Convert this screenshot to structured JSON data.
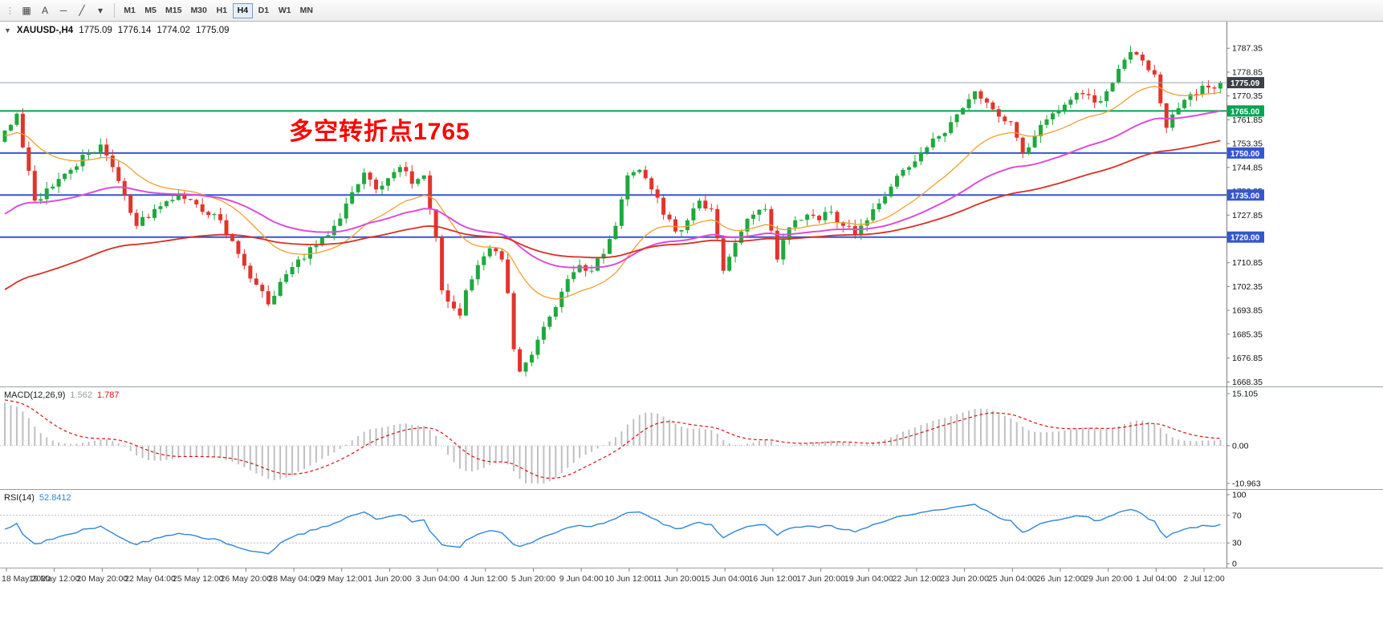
{
  "toolbar": {
    "tools": [
      {
        "name": "chart-type-icon",
        "glyph": "▦"
      },
      {
        "name": "text-tool-icon",
        "glyph": "A"
      },
      {
        "name": "hline-tool-icon",
        "glyph": "─"
      },
      {
        "name": "trendline-tool-icon",
        "glyph": "╱"
      },
      {
        "name": "tools-dropdown-icon",
        "glyph": "▾"
      }
    ],
    "timeframes": [
      {
        "label": "M1",
        "active": false
      },
      {
        "label": "M5",
        "active": false
      },
      {
        "label": "M15",
        "active": false
      },
      {
        "label": "M30",
        "active": false
      },
      {
        "label": "H1",
        "active": false
      },
      {
        "label": "H4",
        "active": true
      },
      {
        "label": "D1",
        "active": false
      },
      {
        "label": "W1",
        "active": false
      },
      {
        "label": "MN",
        "active": false
      }
    ]
  },
  "chart": {
    "symbol_line": {
      "collapse_glyph": "▼",
      "title": "XAUUSD-,H4",
      "o": "1775.09",
      "h": "1776.14",
      "l": "1774.02",
      "c": "1775.09"
    },
    "annotation": {
      "text": "多空转折点1765",
      "color": "#ff0000"
    }
  },
  "chart_data": {
    "type": "candlestick",
    "symbol": "XAUUSD-",
    "timeframe": "H4",
    "ohlc_current": {
      "open": 1775.09,
      "high": 1776.14,
      "low": 1774.02,
      "close": 1775.09
    },
    "bars": 204,
    "noise_amp": 1.6,
    "wick_amp": 2.4,
    "candle_colors": {
      "up": "#1fa83d",
      "down": "#e2342c"
    },
    "price_path_anchors": [
      [
        0,
        1758
      ],
      [
        2,
        1764
      ],
      [
        3,
        1752
      ],
      [
        5,
        1733
      ],
      [
        8,
        1738
      ],
      [
        11,
        1744
      ],
      [
        14,
        1750
      ],
      [
        16,
        1753
      ],
      [
        19,
        1740
      ],
      [
        22,
        1724
      ],
      [
        26,
        1731
      ],
      [
        29,
        1735
      ],
      [
        33,
        1729
      ],
      [
        36,
        1726
      ],
      [
        39,
        1714
      ],
      [
        42,
        1703
      ],
      [
        44,
        1696
      ],
      [
        46,
        1704
      ],
      [
        49,
        1712
      ],
      [
        52,
        1717
      ],
      [
        55,
        1724
      ],
      [
        58,
        1736
      ],
      [
        60,
        1743
      ],
      [
        62,
        1737
      ],
      [
        64,
        1741
      ],
      [
        66,
        1745
      ],
      [
        68,
        1739
      ],
      [
        70,
        1742
      ],
      [
        72,
        1720
      ],
      [
        73,
        1701
      ],
      [
        74,
        1697
      ],
      [
        76,
        1692
      ],
      [
        77,
        1701
      ],
      [
        79,
        1710
      ],
      [
        81,
        1716
      ],
      [
        83,
        1712
      ],
      [
        84,
        1700
      ],
      [
        85,
        1680
      ],
      [
        86,
        1672
      ],
      [
        88,
        1678
      ],
      [
        90,
        1688
      ],
      [
        92,
        1695
      ],
      [
        94,
        1705
      ],
      [
        96,
        1710
      ],
      [
        98,
        1708
      ],
      [
        100,
        1714
      ],
      [
        102,
        1724
      ],
      [
        104,
        1742
      ],
      [
        106,
        1744
      ],
      [
        108,
        1737
      ],
      [
        110,
        1728
      ],
      [
        112,
        1722
      ],
      [
        114,
        1726
      ],
      [
        116,
        1733
      ],
      [
        118,
        1730
      ],
      [
        120,
        1708
      ],
      [
        121,
        1713
      ],
      [
        123,
        1722
      ],
      [
        125,
        1728
      ],
      [
        127,
        1730
      ],
      [
        129,
        1712
      ],
      [
        130,
        1719
      ],
      [
        132,
        1726
      ],
      [
        134,
        1728
      ],
      [
        136,
        1726
      ],
      [
        138,
        1729
      ],
      [
        140,
        1724
      ],
      [
        142,
        1721
      ],
      [
        144,
        1726
      ],
      [
        146,
        1732
      ],
      [
        148,
        1738
      ],
      [
        150,
        1744
      ],
      [
        152,
        1747
      ],
      [
        154,
        1752
      ],
      [
        156,
        1756
      ],
      [
        158,
        1761
      ],
      [
        160,
        1766
      ],
      [
        162,
        1772
      ],
      [
        164,
        1768
      ],
      [
        166,
        1763
      ],
      [
        168,
        1761
      ],
      [
        170,
        1750
      ],
      [
        172,
        1756
      ],
      [
        174,
        1762
      ],
      [
        176,
        1765
      ],
      [
        178,
        1769
      ],
      [
        180,
        1771
      ],
      [
        182,
        1768
      ],
      [
        184,
        1772
      ],
      [
        186,
        1780
      ],
      [
        188,
        1786
      ],
      [
        190,
        1783
      ],
      [
        192,
        1778
      ],
      [
        194,
        1759
      ],
      [
        196,
        1766
      ],
      [
        198,
        1771
      ],
      [
        200,
        1774
      ],
      [
        202,
        1773
      ],
      [
        203,
        1775.09
      ]
    ],
    "moving_averages": [
      {
        "name": "ma-fast-orange",
        "period": 20,
        "seed": 1756,
        "color": "#f0a030",
        "width": 1.3
      },
      {
        "name": "ma-mid-magenta",
        "period": 48,
        "seed": 1727,
        "color": "#d94fd9",
        "width": 2
      },
      {
        "name": "ma-slow-red",
        "period": 90,
        "seed": 1700,
        "color": "#d93025",
        "width": 1.8
      }
    ],
    "hlines": [
      {
        "price": 1765.0,
        "label": "1765.00",
        "color": "#00a550",
        "width": 2
      },
      {
        "price": 1750.0,
        "label": "1750.00",
        "color": "#3456d1",
        "width": 2
      },
      {
        "price": 1735.0,
        "label": "1735.00",
        "color": "#3456d1",
        "width": 2
      },
      {
        "price": 1720.0,
        "label": "1720.00",
        "color": "#3456d1",
        "width": 2
      }
    ],
    "current_price": {
      "value": 1775.09,
      "label": "1775.09",
      "line_color": "#97a5b5",
      "box_color": "#3b4148"
    },
    "price_axis": {
      "min": 1667,
      "max": 1796,
      "labels": [
        "1787.35",
        "1778.85",
        "1770.35",
        "1761.85",
        "1753.35",
        "1744.85",
        "1736.35",
        "1727.85",
        "1719.35",
        "1710.85",
        "1702.35",
        "1693.85",
        "1685.35",
        "1676.85",
        "1668.35"
      ]
    },
    "macd": {
      "label": "MACD(12,26,9)",
      "main_value": "1.562",
      "signal_value": "1.787",
      "vmax": 15.105,
      "vmin": -10.963,
      "axis": [
        "15.105",
        "0.00",
        "-10.963"
      ],
      "hist_color": "#c0c0c0",
      "signal_color": "#dd1111",
      "main_value_color": "#9a9a9a"
    },
    "rsi": {
      "label": "RSI(14)",
      "value": "52.8412",
      "period": 14,
      "axis": [
        "100",
        "70",
        "30",
        "0"
      ],
      "levels": [
        70,
        30
      ],
      "color": "#2e86d9",
      "level_color": "#bbbbbb"
    },
    "time_axis": [
      "18 May 2020",
      "19 May 12:00",
      "20 May 20:00",
      "22 May 04:00",
      "25 May 12:00",
      "26 May 20:00",
      "28 May 04:00",
      "29 May 12:00",
      "1 Jun 20:00",
      "3 Jun 04:00",
      "4 Jun 12:00",
      "5 Jun 20:00",
      "9 Jun 04:00",
      "10 Jun 12:00",
      "11 Jun 20:00",
      "15 Jun 04:00",
      "16 Jun 12:00",
      "17 Jun 20:00",
      "19 Jun 04:00",
      "22 Jun 12:00",
      "23 Jun 20:00",
      "25 Jun 04:00",
      "26 Jun 12:00",
      "29 Jun 20:00",
      "1 Jul 04:00",
      "2 Jul 12:00"
    ]
  }
}
